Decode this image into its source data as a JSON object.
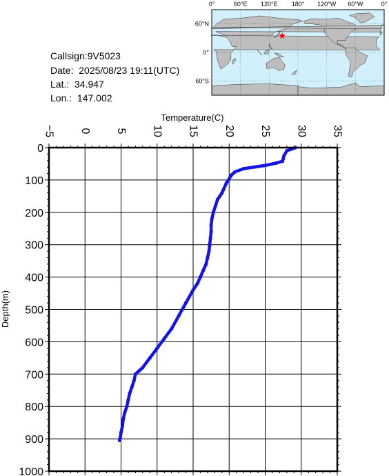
{
  "info": {
    "callsign": "Callsign:9V5023",
    "date": "Date:  2025/08/23 19:11(UTC)",
    "lat": "Lat.:  34.947",
    "lon": "Lon.:  147.002"
  },
  "map": {
    "top_labels": [
      "0°",
      "60°E",
      "120°E",
      "180°",
      "120°W",
      "60°W",
      "0°"
    ],
    "left_labels": [
      "60°N",
      "0°",
      "60°S"
    ],
    "land_color": "#bebebe",
    "ocean_color": "#d2f0fb",
    "marker_color": "#ff0000",
    "marker": {
      "lon": 147.002,
      "lat": 34.947
    }
  },
  "chart_data": {
    "type": "line",
    "xlabel": "Temperature(C)",
    "ylabel": "Depth(m)",
    "xlim": [
      -5,
      35
    ],
    "ylim": [
      1000,
      0
    ],
    "x_ticks": [
      -5,
      0,
      5,
      10,
      15,
      20,
      25,
      30,
      35
    ],
    "y_ticks": [
      0,
      100,
      200,
      300,
      400,
      500,
      600,
      700,
      800,
      900,
      1000
    ],
    "grid": true,
    "line_color": "#1414e6",
    "series": [
      {
        "x": [
          29.2,
          28.6,
          28.0,
          27.6,
          27.5,
          27.4,
          26.5,
          25.0,
          23.5,
          22.0,
          20.8,
          20.3,
          19.9,
          19.6,
          19.2,
          19.0,
          18.7,
          18.4,
          18.1,
          17.8,
          17.6,
          17.5,
          17.5,
          17.4,
          17.3,
          17.2,
          17.0,
          16.8,
          16.4,
          16.0,
          15.6,
          15.0,
          14.0,
          13.0,
          12.0,
          11.0,
          10.0,
          9.0,
          8.0,
          7.5,
          7.0,
          6.8,
          6.5,
          6.2,
          6.0,
          5.8,
          5.5,
          5.3,
          5.2,
          5.0,
          4.9,
          4.8
        ],
        "y": [
          0,
          5,
          10,
          25,
          35,
          42,
          48,
          55,
          60,
          65,
          75,
          85,
          100,
          110,
          130,
          140,
          150,
          160,
          180,
          200,
          220,
          240,
          260,
          280,
          300,
          320,
          340,
          360,
          380,
          400,
          420,
          440,
          480,
          520,
          560,
          590,
          620,
          650,
          680,
          690,
          700,
          720,
          740,
          760,
          780,
          800,
          820,
          840,
          860,
          880,
          895,
          905
        ]
      }
    ]
  }
}
